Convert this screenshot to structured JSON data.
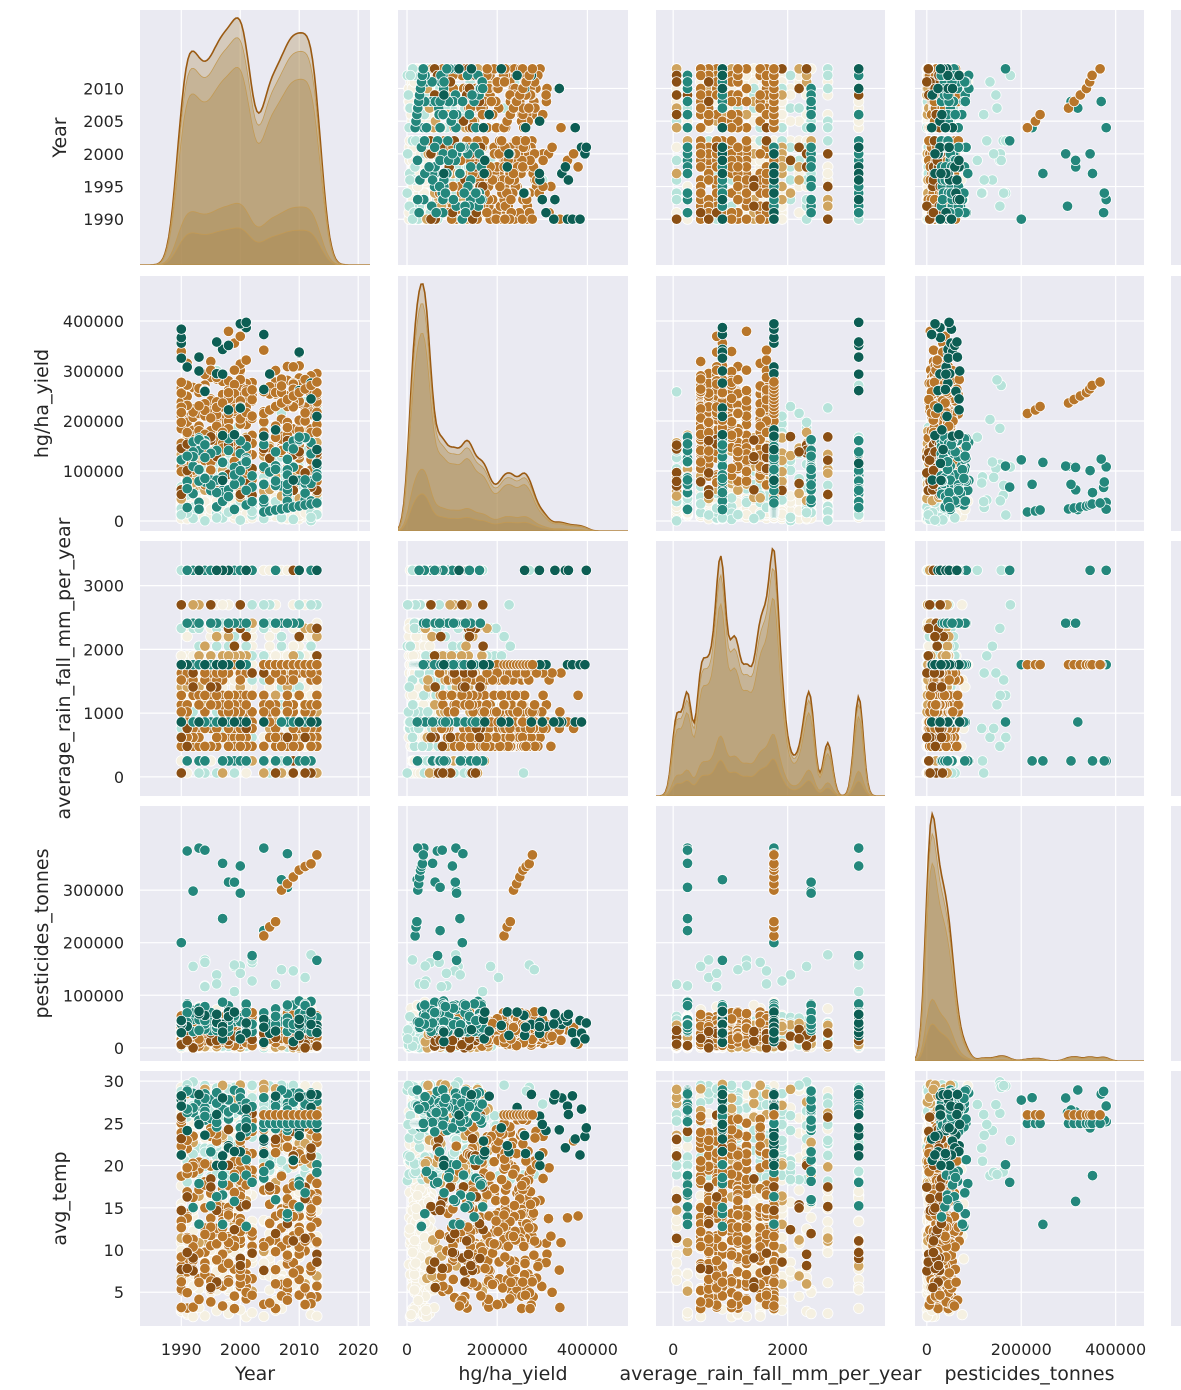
{
  "chart_data": {
    "type": "scatter",
    "variables": [
      {
        "key": "year",
        "label": "Year",
        "range": [
          1983,
          2022
        ],
        "ticks": [
          1990,
          2000,
          2010,
          2020
        ],
        "yticks": [
          1990,
          1995,
          2000,
          2005,
          2010
        ]
      },
      {
        "key": "yield",
        "label": "hg/ha_yield",
        "range": [
          -20000,
          490000
        ],
        "ticks": [
          0,
          200000,
          400000
        ],
        "yticks": [
          0,
          100000,
          200000,
          300000,
          400000
        ]
      },
      {
        "key": "rain",
        "label": "average_rain_fall_mm_per_year",
        "range": [
          -300,
          3700
        ],
        "ticks": [
          0,
          2000
        ],
        "yticks": [
          0,
          1000,
          2000,
          3000
        ]
      },
      {
        "key": "pest",
        "label": "pesticides_tonnes",
        "range": [
          -25000,
          460000
        ],
        "ticks": [
          0,
          200000,
          400000
        ],
        "yticks": [
          0,
          100000,
          200000,
          300000
        ]
      },
      {
        "key": "temp",
        "label": "avg_temp",
        "range": [
          1,
          31.2
        ],
        "ticks": [],
        "yticks": [
          5,
          10,
          15,
          20,
          25,
          30
        ]
      }
    ],
    "hue_palette": [
      "#f5f0e1",
      "#b6e3da",
      "#cfa45f",
      "#b8762a",
      "#8a4f14",
      "#24877c",
      "#0d5e54"
    ],
    "diag_fill": "#a8864a",
    "diag_line": "#9a5a12",
    "grid": true,
    "background": "#eaeaf2",
    "legend": "none (cropped)",
    "year_gap": [
      2002,
      2004
    ]
  }
}
